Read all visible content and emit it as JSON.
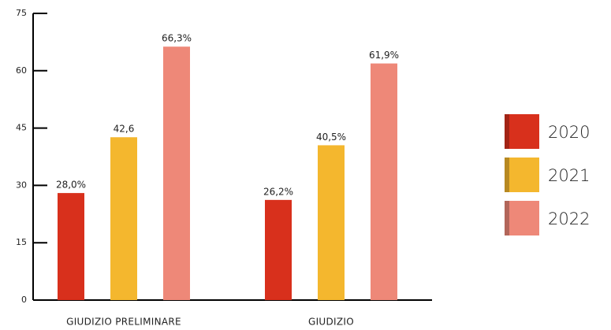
{
  "chart_data": {
    "type": "bar",
    "categories": [
      "GIUDIZIO  PRELIMINARE",
      "GIUDIZIO"
    ],
    "series": [
      {
        "name": "2020",
        "color": "#d8301c",
        "values": [
          28.0,
          26.2
        ],
        "value_labels": [
          "28,0%",
          "26,2%"
        ]
      },
      {
        "name": "2021",
        "color": "#f4b72e",
        "values": [
          42.6,
          40.5
        ],
        "value_labels": [
          "42,6",
          "40,5%"
        ]
      },
      {
        "name": "2022",
        "color": "#ee8878",
        "values": [
          66.3,
          61.9
        ],
        "value_labels": [
          "66,3%",
          "61,9%"
        ]
      }
    ],
    "ylim": [
      0,
      75
    ],
    "yticks": [
      0,
      15,
      30,
      45,
      60,
      75
    ],
    "legend": "right"
  }
}
